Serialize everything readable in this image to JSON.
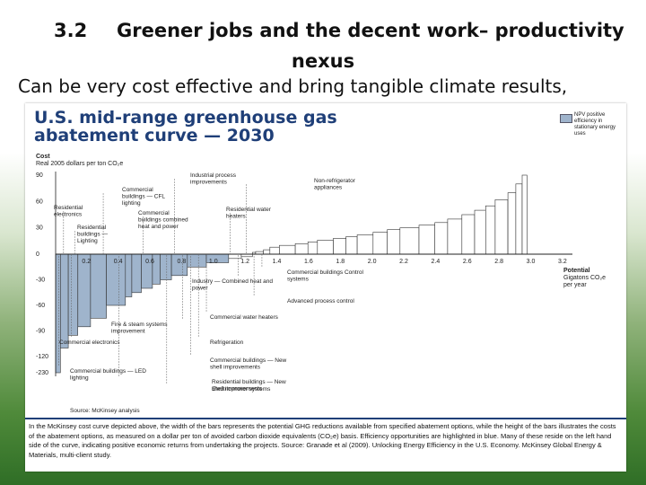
{
  "slide": {
    "number": "3.2",
    "heading_line1": "Greener jobs and the decent work– productivity",
    "heading_line2": "nexus",
    "subtitle": "Can be very cost effective and bring tangible climate results,"
  },
  "figure": {
    "title_line1": "U.S. mid-range greenhouse gas",
    "title_line2": "abatement curve — 2030",
    "legend_label": "NPV positive efficiency in stationary energy uses",
    "cost_label_line1": "Cost",
    "cost_label_line2": "Real 2005 dollars per ton CO₂e",
    "source": "Source: McKinsey analysis",
    "caption": "In the McKinsey cost curve depicted above, the width of the bars represents the potential GHG reductions available from specified abatement options, while the height of the bars illustrates the costs of the abatement options, as measured on a dollar per ton of avoided carbon dioxide equivalents (CO₂e) basis. Efficiency opportunities are highlighted in blue. Many of these reside on the left hand side of the curve, indicating positive economic returns from undertaking the projects. Source: Granade et al (2009). Unlocking Energy Efficiency in the U.S. Economy. McKinsey Global Energy & Materials, multi-client study."
  },
  "chart_data": {
    "type": "bar",
    "title": "U.S. mid-range greenhouse gas abatement curve — 2030",
    "ylabel": "Cost Real 2005 dollars per ton CO₂e",
    "xlabel": "Potential Gigatons CO₂e per year",
    "xlim": [
      0,
      3.2
    ],
    "ylim": [
      -230,
      90
    ],
    "x_ticks": [
      "0.2",
      "0.4",
      "0.6",
      "0.8",
      "1.0",
      "1.2",
      "1.4",
      "1.6",
      "1.8",
      "2.0",
      "2.2",
      "2.4",
      "2.6",
      "2.8",
      "3.0",
      "3.2"
    ],
    "y_ticks": [
      "90",
      "60",
      "30",
      "0",
      "-30",
      "-60",
      "-90",
      "-120",
      "-230"
    ],
    "colors": {
      "efficiency": "#9fb4cc",
      "other": "#ffffff",
      "outline": "#333333"
    },
    "bars": [
      {
        "w": 0.03,
        "cost": -230,
        "efficiency": true
      },
      {
        "w": 0.05,
        "cost": -110,
        "efficiency": true
      },
      {
        "w": 0.06,
        "cost": -95,
        "efficiency": true
      },
      {
        "w": 0.08,
        "cost": -85,
        "efficiency": true
      },
      {
        "w": 0.1,
        "cost": -75,
        "efficiency": true
      },
      {
        "w": 0.12,
        "cost": -60,
        "efficiency": true
      },
      {
        "w": 0.04,
        "cost": -50,
        "efficiency": true
      },
      {
        "w": 0.06,
        "cost": -45,
        "efficiency": true
      },
      {
        "w": 0.07,
        "cost": -40,
        "efficiency": true
      },
      {
        "w": 0.05,
        "cost": -35,
        "efficiency": true
      },
      {
        "w": 0.07,
        "cost": -30,
        "efficiency": true
      },
      {
        "w": 0.1,
        "cost": -25,
        "efficiency": true
      },
      {
        "w": 0.12,
        "cost": -15,
        "efficiency": true
      },
      {
        "w": 0.14,
        "cost": -10,
        "efficiency": true
      },
      {
        "w": 0.08,
        "cost": -5,
        "efficiency": false
      },
      {
        "w": 0.07,
        "cost": -3,
        "efficiency": false
      },
      {
        "w": 0.02,
        "cost": 2,
        "efficiency": false
      },
      {
        "w": 0.05,
        "cost": 3,
        "efficiency": false
      },
      {
        "w": 0.04,
        "cost": 5,
        "efficiency": false
      },
      {
        "w": 0.06,
        "cost": 8,
        "efficiency": false
      },
      {
        "w": 0.1,
        "cost": 10,
        "efficiency": false
      },
      {
        "w": 0.08,
        "cost": 12,
        "efficiency": false
      },
      {
        "w": 0.06,
        "cost": 14,
        "efficiency": false
      },
      {
        "w": 0.1,
        "cost": 16,
        "efficiency": false
      },
      {
        "w": 0.08,
        "cost": 18,
        "efficiency": false
      },
      {
        "w": 0.07,
        "cost": 20,
        "efficiency": false
      },
      {
        "w": 0.1,
        "cost": 22,
        "efficiency": false
      },
      {
        "w": 0.09,
        "cost": 25,
        "efficiency": false
      },
      {
        "w": 0.08,
        "cost": 28,
        "efficiency": false
      },
      {
        "w": 0.12,
        "cost": 30,
        "efficiency": false
      },
      {
        "w": 0.1,
        "cost": 33,
        "efficiency": false
      },
      {
        "w": 0.08,
        "cost": 36,
        "efficiency": false
      },
      {
        "w": 0.09,
        "cost": 40,
        "efficiency": false
      },
      {
        "w": 0.08,
        "cost": 45,
        "efficiency": false
      },
      {
        "w": 0.07,
        "cost": 50,
        "efficiency": false
      },
      {
        "w": 0.06,
        "cost": 55,
        "efficiency": false
      },
      {
        "w": 0.08,
        "cost": 62,
        "efficiency": false
      },
      {
        "w": 0.05,
        "cost": 70,
        "efficiency": false
      },
      {
        "w": 0.04,
        "cost": 80,
        "efficiency": false
      },
      {
        "w": 0.03,
        "cost": 90,
        "efficiency": false
      }
    ],
    "annotations": [
      {
        "text": "Residential electronics",
        "x": 0.05,
        "side": "top"
      },
      {
        "text": "Residential buildings — Lighting",
        "x": 0.12,
        "side": "top"
      },
      {
        "text": "Commercial buildings — CFL lighting",
        "x": 0.3,
        "side": "top"
      },
      {
        "text": "Commercial buildings combined heat and power",
        "x": 0.55,
        "side": "top"
      },
      {
        "text": "Industrial process improvements",
        "x": 0.75,
        "side": "top"
      },
      {
        "text": "Residential water heaters",
        "x": 1.1,
        "side": "top"
      },
      {
        "text": "Non-refrigerator appliances",
        "x": 1.2,
        "side": "top"
      },
      {
        "text": "Industry — Combined heat and power",
        "x": 1.15,
        "side": "bottom"
      },
      {
        "text": "Commercial buildings Control systems",
        "x": 1.3,
        "side": "bottom"
      },
      {
        "text": "Advanced process control",
        "x": 1.25,
        "side": "bottom"
      },
      {
        "text": "Commercial water heaters",
        "x": 0.95,
        "side": "bottom"
      },
      {
        "text": "Refrigeration",
        "x": 0.9,
        "side": "bottom"
      },
      {
        "text": "Commercial buildings — New shell improvements",
        "x": 0.85,
        "side": "bottom"
      },
      {
        "text": "Residential buildings — New shell improvements",
        "x": 0.4,
        "side": "bottom"
      },
      {
        "text": "Fire & steam systems improvement",
        "x": 0.8,
        "side": "bottom"
      },
      {
        "text": "Electric motor systems",
        "x": 0.7,
        "side": "bottom"
      },
      {
        "text": "Commercial electronics",
        "x": 0.1,
        "side": "bottom"
      },
      {
        "text": "Commercial buildings — LED lighting",
        "x": 0.02,
        "side": "bottom"
      }
    ]
  }
}
